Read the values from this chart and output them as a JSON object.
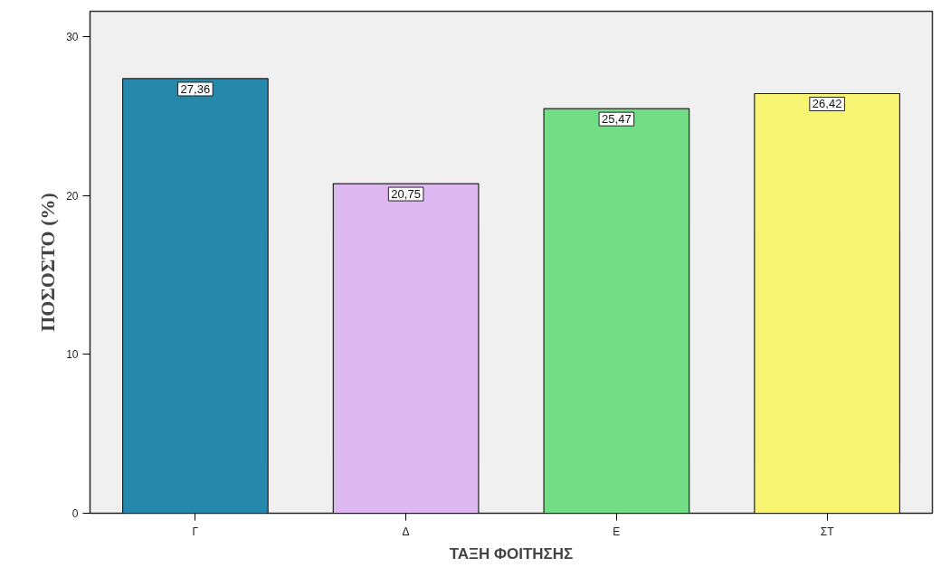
{
  "chart_data": {
    "type": "bar",
    "xlabel": "ΤΑΞΗ ΦΟΙΤΗΣΗΣ",
    "ylabel": "ΠΟΣΟΣΤΟ (%)",
    "categories": [
      "Γ",
      "Δ",
      "Ε",
      "ΣΤ"
    ],
    "values": [
      27.36,
      20.75,
      25.47,
      26.42
    ],
    "colors": [
      "#2688aa",
      "#ddb8f0",
      "#72dd84",
      "#f8f572"
    ],
    "value_labels": [
      "27,36",
      "20,75",
      "25,47",
      "26,42"
    ],
    "ylim": [
      0,
      31.6
    ],
    "yticks": [
      0,
      10,
      20,
      30
    ],
    "grid": false
  }
}
